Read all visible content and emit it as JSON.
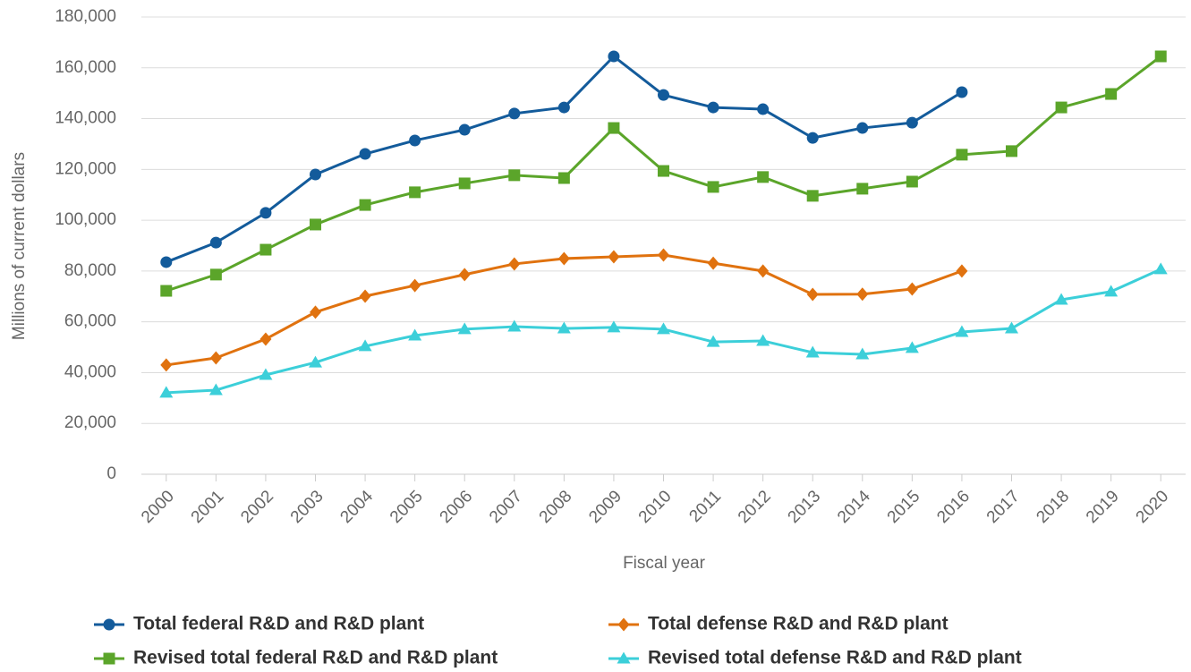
{
  "chart_data": {
    "type": "line",
    "x_label": "Fiscal year",
    "y_label": "Millions of current dollars",
    "categories": [
      "2000",
      "2001",
      "2002",
      "2003",
      "2004",
      "2005",
      "2006",
      "2007",
      "2008",
      "2009",
      "2010",
      "2011",
      "2012",
      "2013",
      "2014",
      "2015",
      "2016",
      "2017",
      "2018",
      "2019",
      "2020"
    ],
    "ylim": [
      0,
      180000
    ],
    "yticks": [
      0,
      {
        "value": 20000,
        "label": "20,000"
      },
      {
        "value": 40000,
        "label": "40,000"
      },
      {
        "value": 60000,
        "label": "60,000"
      },
      {
        "value": 80000,
        "label": "80,000"
      },
      {
        "value": 100000,
        "label": "100,000"
      },
      {
        "value": 120000,
        "label": "120,000"
      },
      {
        "value": 140000,
        "label": "140,000"
      },
      {
        "value": 160000,
        "label": "160,000"
      },
      {
        "value": 180000,
        "label": "180,000"
      }
    ],
    "grid": true,
    "legend_position": "bottom",
    "series": [
      {
        "name": "Total federal R&D and R&D plant",
        "color": "#135b9b",
        "marker": "circle",
        "values": [
          83500,
          91200,
          102900,
          118000,
          126100,
          131400,
          135600,
          142000,
          144400,
          164500,
          149300,
          144400,
          143700,
          132400,
          136300,
          138400,
          150400,
          null,
          null,
          null,
          null
        ]
      },
      {
        "name": "Total defense R&D and R&D plant",
        "color": "#e0720f",
        "marker": "diamond",
        "values": [
          43000,
          45800,
          53200,
          63800,
          70100,
          74300,
          78600,
          82800,
          84900,
          85600,
          86300,
          83100,
          80000,
          70800,
          70900,
          72900,
          80000,
          null,
          null,
          null,
          null
        ]
      },
      {
        "name": "Revised total federal R&D and R&D plant",
        "color": "#5ba52a",
        "marker": "square",
        "values": [
          72200,
          78600,
          88400,
          98300,
          106000,
          111000,
          114500,
          117700,
          116600,
          136300,
          119400,
          113100,
          117000,
          109600,
          112400,
          115200,
          125800,
          127200,
          144400,
          149700,
          164500
        ]
      },
      {
        "name": "Revised total defense R&D and R&D plant",
        "color": "#3ccfd9",
        "marker": "triangle",
        "values": [
          32100,
          33100,
          39100,
          44000,
          50400,
          54600,
          57100,
          58100,
          57400,
          57800,
          57100,
          52100,
          52500,
          47900,
          47200,
          49700,
          56000,
          57400,
          68700,
          71900,
          80700
        ]
      }
    ]
  }
}
